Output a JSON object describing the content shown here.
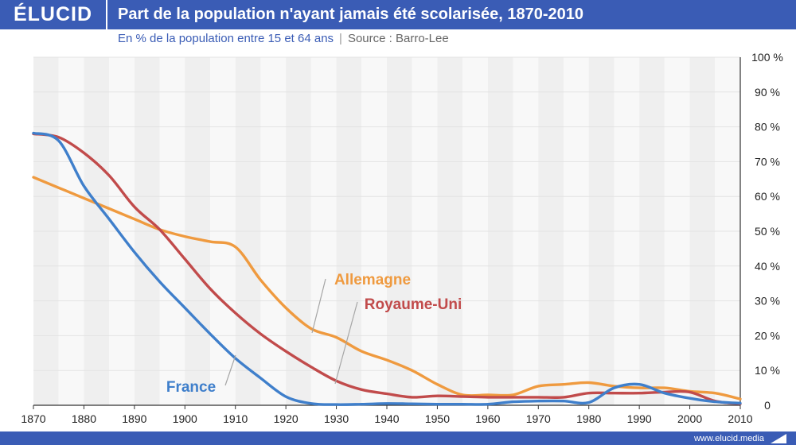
{
  "brand": {
    "logo_text": "ÉLUCID",
    "footer_url": "www.elucid.media",
    "brand_color": "#3a5cb5"
  },
  "chart_data": {
    "type": "line",
    "title": "Part de la population n'ayant jamais été scolarisée, 1870-2010",
    "subtitle": "En % de la population entre 15 et 64 ans",
    "source": "Source : Barro-Lee",
    "separator": "|",
    "xlabel": "",
    "ylabel": "",
    "xlim": [
      1870,
      2010
    ],
    "ylim": [
      0,
      100
    ],
    "x_ticks": [
      1870,
      1880,
      1890,
      1900,
      1910,
      1920,
      1930,
      1940,
      1950,
      1960,
      1970,
      1980,
      1990,
      2000,
      2010
    ],
    "y_ticks": [
      {
        "value": 0,
        "label": "0"
      },
      {
        "value": 10,
        "label": "10 %"
      },
      {
        "value": 20,
        "label": "20 %"
      },
      {
        "value": 30,
        "label": "30 %"
      },
      {
        "value": 40,
        "label": "40 %"
      },
      {
        "value": 50,
        "label": "50 %"
      },
      {
        "value": 60,
        "label": "60 %"
      },
      {
        "value": 70,
        "label": "70 %"
      },
      {
        "value": 80,
        "label": "80 %"
      },
      {
        "value": 90,
        "label": "90 %"
      },
      {
        "value": 100,
        "label": "100 %"
      }
    ],
    "y_axis_position": "right",
    "grid": true,
    "series": [
      {
        "name": "France",
        "color": "#3f7fcb",
        "x": [
          1870,
          1875,
          1880,
          1885,
          1890,
          1895,
          1900,
          1905,
          1910,
          1915,
          1920,
          1925,
          1930,
          1935,
          1940,
          1945,
          1950,
          1955,
          1960,
          1965,
          1970,
          1975,
          1980,
          1985,
          1990,
          1995,
          2000,
          2005,
          2010
        ],
        "y": [
          78.2,
          76,
          63,
          53.5,
          44,
          35.5,
          28,
          20.5,
          13.5,
          7.8,
          2.5,
          0.5,
          0.2,
          0.3,
          0.5,
          0.4,
          0.3,
          0.3,
          0.3,
          1.0,
          1.2,
          1.2,
          0.8,
          5.0,
          6.0,
          3.5,
          2.0,
          1.0,
          0.6
        ],
        "label_anchor": [
          1907,
          10
        ]
      },
      {
        "name": "Allemagne",
        "color": "#ef9a3f",
        "x": [
          1870,
          1875,
          1880,
          1885,
          1890,
          1895,
          1900,
          1905,
          1910,
          1915,
          1920,
          1925,
          1930,
          1935,
          1940,
          1945,
          1950,
          1955,
          1960,
          1965,
          1970,
          1975,
          1980,
          1985,
          1990,
          1995,
          2000,
          2005,
          2010
        ],
        "y": [
          65.5,
          62.5,
          59.5,
          56.5,
          53.5,
          50.5,
          48.5,
          47,
          45.5,
          36,
          28,
          22,
          19.5,
          15.5,
          13,
          10,
          6,
          3,
          3,
          3,
          5.5,
          6,
          6.5,
          5.5,
          5.0,
          5.0,
          4.0,
          3.5,
          1.8
        ],
        "label_anchor": [
          1928,
          37
        ]
      },
      {
        "name": "Royaume-Uni",
        "color": "#c14b4b",
        "x": [
          1870,
          1875,
          1880,
          1885,
          1890,
          1895,
          1900,
          1905,
          1910,
          1915,
          1920,
          1925,
          1930,
          1935,
          1940,
          1945,
          1950,
          1955,
          1960,
          1965,
          1970,
          1975,
          1980,
          1985,
          1990,
          1995,
          2000,
          2005,
          2010
        ],
        "y": [
          78,
          77,
          72.5,
          66,
          57,
          50.5,
          42,
          33.5,
          26.5,
          20.5,
          15.5,
          11,
          7,
          4.5,
          3.3,
          2.3,
          2.7,
          2.5,
          2.3,
          2.3,
          2.3,
          2.3,
          3.5,
          3.5,
          3.5,
          3.8,
          3.8,
          1.2,
          0.4
        ],
        "label_anchor": [
          1930,
          30
        ]
      }
    ]
  }
}
